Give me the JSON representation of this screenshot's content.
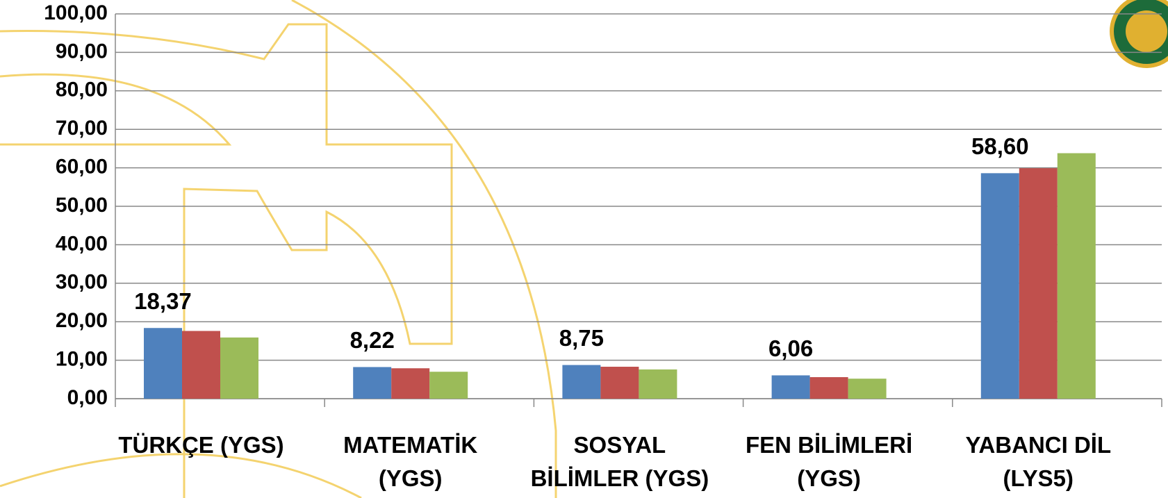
{
  "chart_data": {
    "type": "bar",
    "categories": [
      "TÜRKÇE (YGS)",
      "MATEMATİK (YGS)",
      "SOSYAL BİLİMLER (YGS)",
      "FEN BİLİMLERİ (YGS)",
      "YABANCI DİL (LYS5)"
    ],
    "series": [
      {
        "color": "#4f81bd",
        "values": [
          18.37,
          8.22,
          8.75,
          6.06,
          58.6
        ],
        "value_labels": [
          "18,37",
          "8,22",
          "8,75",
          "6,06",
          "58,60"
        ]
      },
      {
        "color": "#c0504d",
        "values": [
          17.6,
          7.9,
          8.3,
          5.6,
          59.9
        ]
      },
      {
        "color": "#9bbb59",
        "values": [
          15.9,
          7.0,
          7.6,
          5.2,
          63.8
        ]
      }
    ],
    "ylim": [
      0,
      100
    ],
    "yticks": [
      {
        "value": 0,
        "label": "0,00"
      },
      {
        "value": 10,
        "label": "10,00"
      },
      {
        "value": 20,
        "label": "20,00"
      },
      {
        "value": 30,
        "label": "30,00"
      },
      {
        "value": 40,
        "label": "40,00"
      },
      {
        "value": 50,
        "label": "50,00"
      },
      {
        "value": 60,
        "label": "60,00"
      },
      {
        "value": 70,
        "label": "70,00"
      },
      {
        "value": 80,
        "label": "80,00"
      },
      {
        "value": 90,
        "label": "90,00"
      },
      {
        "value": 100,
        "label": "100,00"
      }
    ],
    "grid": true
  }
}
